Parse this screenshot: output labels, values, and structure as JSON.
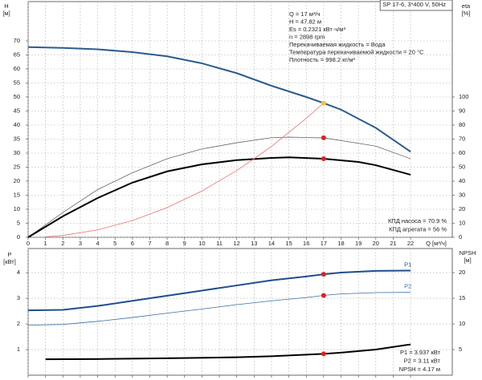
{
  "chart_data": [
    {
      "type": "line",
      "title": "SP 17-6, 3*400 V, 50Hz",
      "info": [
        "Q = 17 м³/ч",
        "H = 47.82 м",
        "Es = 0.2321 кВт·ч/м³",
        "n = 2898 rpm",
        "Перекачиваемая жидкость = Вода",
        "Температура перекачиваемой жидкости = 20 °C",
        "Плотность = 998.2 кг/м³"
      ],
      "notes": [
        "КПД насоса = 70.9 %",
        "КПД агрегата = 56 %"
      ],
      "ylabel": [
        "H",
        "[м]"
      ],
      "y2label": [
        "eta",
        "[%]"
      ],
      "xlabel": "Q [м³/ч]",
      "xlim": [
        0,
        24.4
      ],
      "xticks": [
        0,
        1,
        2,
        3,
        4,
        5,
        6,
        7,
        8,
        9,
        10,
        11,
        12,
        13,
        14,
        15,
        16,
        17,
        18,
        19,
        20,
        21,
        22
      ],
      "ylim": [
        0,
        84
      ],
      "yticks": [
        0,
        5,
        10,
        15,
        20,
        25,
        30,
        35,
        40,
        45,
        50,
        55,
        60,
        65,
        70
      ],
      "y2lim": [
        0,
        168
      ],
      "y2ticks": [
        0,
        10,
        20,
        30,
        40,
        50,
        60,
        70,
        80,
        90,
        100
      ],
      "grid": true,
      "xtick_labels": true,
      "series": [
        {
          "color": "#2b5c8e",
          "width": 2,
          "x": [
            0,
            2,
            4,
            6,
            8,
            10,
            12,
            14,
            16,
            17,
            18,
            20,
            22
          ],
          "values": [
            67.8,
            67.5,
            67,
            66,
            64.5,
            62,
            58.5,
            54,
            50,
            47.82,
            45.5,
            39,
            30.5
          ]
        },
        {
          "color": "#666666",
          "width": 0.8,
          "axis": "y2",
          "x": [
            0,
            2,
            4,
            6,
            8,
            10,
            12,
            14,
            15,
            17,
            19,
            20,
            22
          ],
          "values": [
            0,
            17.7,
            34,
            46,
            56,
            63,
            67.4,
            71,
            71.4,
            70.9,
            67,
            65,
            56
          ]
        },
        {
          "color": "#000000",
          "width": 2,
          "axis": "y2",
          "x": [
            0,
            2,
            4,
            6,
            8,
            10,
            12,
            14,
            15,
            17,
            19,
            20,
            22
          ],
          "values": [
            0,
            15,
            28,
            39,
            47,
            52,
            55,
            56.6,
            57,
            56,
            53.7,
            51.4,
            44.6
          ]
        },
        {
          "color": "#f07070",
          "width": 0.8,
          "x": [
            1,
            2,
            4,
            6,
            8,
            10,
            12,
            13,
            14,
            16,
            17
          ],
          "values": [
            0.17,
            0.66,
            2.65,
            5.96,
            10.6,
            16.5,
            23.8,
            28,
            32.4,
            42.4,
            47.82
          ]
        },
        {
          "color": "#f5c242",
          "style": "dot",
          "x": [
            17
          ],
          "values": [
            47.82
          ]
        },
        {
          "color": "#e02020",
          "style": "dot",
          "axis": "y2",
          "x": [
            17,
            17
          ],
          "values": [
            70.9,
            56
          ]
        }
      ]
    },
    {
      "type": "line",
      "notes": [
        "P1 = 3.937 кВт",
        "P2 = 3.11 кВт",
        "NPSH = 4.17 м"
      ],
      "ylabel": [
        "P",
        "[кВт]"
      ],
      "y2label": [
        "NPSH",
        "[м]"
      ],
      "xlim": [
        0,
        24.4
      ],
      "xticks": [
        0,
        1,
        2,
        3,
        4,
        5,
        6,
        7,
        8,
        9,
        10,
        11,
        12,
        13,
        14,
        15,
        16,
        17,
        18,
        19,
        20,
        21,
        22
      ],
      "ylim": [
        0,
        4.94
      ],
      "yticks": [
        1,
        2,
        3,
        4
      ],
      "y2lim": [
        0,
        24.7
      ],
      "y2ticks": [
        5,
        10,
        15,
        20
      ],
      "grid": true,
      "xtick_labels": false,
      "series": [
        {
          "name": "P1",
          "color": "#1f4e8c",
          "width": 2,
          "x": [
            0,
            2,
            4,
            6,
            8,
            10,
            12,
            14,
            16,
            17,
            18,
            20,
            22
          ],
          "values": [
            2.53,
            2.55,
            2.7,
            2.9,
            3.1,
            3.3,
            3.5,
            3.7,
            3.85,
            3.937,
            4.0,
            4.07,
            4.08
          ]
        },
        {
          "name": "P2",
          "color": "#3a6ea5",
          "width": 0.8,
          "x": [
            0,
            2,
            4,
            6,
            8,
            10,
            12,
            14,
            16,
            17,
            18,
            20,
            22
          ],
          "values": [
            1.95,
            1.98,
            2.1,
            2.25,
            2.42,
            2.58,
            2.75,
            2.9,
            3.03,
            3.11,
            3.17,
            3.22,
            3.23
          ]
        },
        {
          "color": "#000000",
          "width": 2,
          "axis": "y2",
          "x": [
            1,
            4,
            8,
            12,
            14,
            16,
            17,
            18,
            20,
            22
          ],
          "values": [
            3.1,
            3.15,
            3.3,
            3.5,
            3.7,
            4.0,
            4.17,
            4.4,
            5.0,
            6.0
          ]
        },
        {
          "color": "#e02020",
          "style": "dot",
          "x": [
            17,
            17
          ],
          "values": [
            3.937,
            3.11
          ]
        },
        {
          "color": "#e02020",
          "style": "dot",
          "axis": "y2",
          "x": [
            17
          ],
          "values": [
            4.17
          ]
        }
      ]
    }
  ]
}
